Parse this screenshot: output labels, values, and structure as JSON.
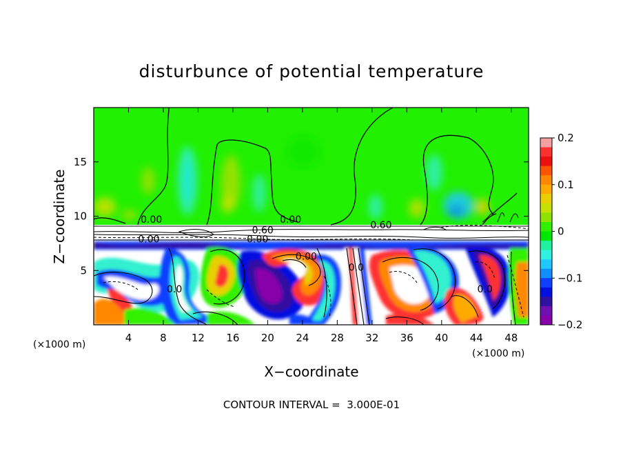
{
  "chart_data": {
    "type": "heatmap",
    "title": "disturbunce of potential temperature",
    "xlabel": "X−coordinate",
    "ylabel": "Z−coordinate",
    "x_unit": "(×1000 m)",
    "x_unit_right": "(×1000 m)",
    "xlim": [
      0,
      50
    ],
    "ylim": [
      0,
      20
    ],
    "x_ticks": [
      4,
      8,
      12,
      16,
      20,
      24,
      28,
      32,
      36,
      40,
      44,
      48
    ],
    "x_tick_labels": [
      "4",
      "8",
      "12",
      "16",
      "20",
      "24",
      "28",
      "32",
      "36",
      "40",
      "44",
      "48"
    ],
    "y_ticks": [
      5,
      10,
      15
    ],
    "y_tick_labels": [
      "5",
      "10",
      "15"
    ],
    "colorbar": {
      "range": [
        -0.2,
        0.2
      ],
      "ticks": [
        0.2,
        0.1,
        0,
        -0.1,
        -0.2
      ],
      "tick_labels": [
        "0.2",
        "0.1",
        "0",
        "−0.1",
        "−0.2"
      ],
      "colors": [
        "#f5a0a0",
        "#ff3030",
        "#ee1010",
        "#ff5500",
        "#ff8800",
        "#ffaa00",
        "#e8d000",
        "#c8e000",
        "#90e000",
        "#30f000",
        "#00e800",
        "#20f0a0",
        "#30f0e0",
        "#20c8ff",
        "#1090ff",
        "#1040ff",
        "#0010e0",
        "#3010a0",
        "#7010b0",
        "#8800aa"
      ]
    },
    "contour_labels": [
      {
        "text": "0.00",
        "x": 5.4,
        "y": 9.4
      },
      {
        "text": "0.00",
        "x": 21.4,
        "y": 9.4
      },
      {
        "text": "0.60",
        "x": 18.2,
        "y": 8.4
      },
      {
        "text": "0.60",
        "x": 31.8,
        "y": 8.9
      },
      {
        "text": "0.00",
        "x": 17.6,
        "y": 7.6
      },
      {
        "text": "0.00",
        "x": 5.1,
        "y": 7.6
      },
      {
        "text": "0.00",
        "x": 23.2,
        "y": 6.0
      },
      {
        "text": "0.0",
        "x": 8.4,
        "y": 3.0
      },
      {
        "text": "0.0",
        "x": 29.3,
        "y": 5.0
      },
      {
        "text": "0.0",
        "x": 44.1,
        "y": 3.0
      }
    ],
    "footer": "CONTOUR INTERVAL =  3.000E-01"
  }
}
